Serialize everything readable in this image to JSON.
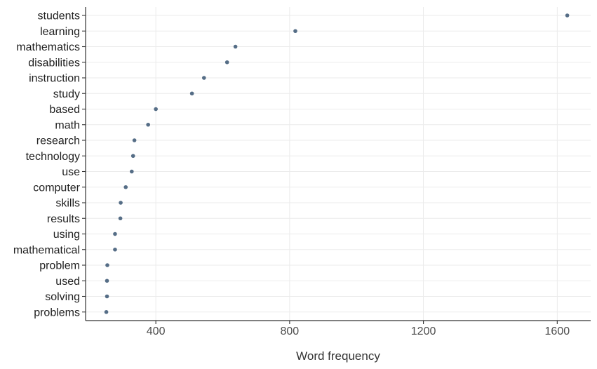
{
  "chart_data": {
    "type": "scatter",
    "title": "",
    "xlabel": "Word frequency",
    "ylabel": "",
    "xlim": [
      190,
      1700
    ],
    "x_ticks": [
      400,
      800,
      1200,
      1600
    ],
    "grid": true,
    "legend": "none",
    "point_color": "#556d86",
    "categories": [
      "students",
      "learning",
      "mathematics",
      "disabilities",
      "instruction",
      "study",
      "based",
      "math",
      "research",
      "technology",
      "use",
      "computer",
      "skills",
      "results",
      "using",
      "mathematical",
      "problem",
      "used",
      "solving",
      "problems"
    ],
    "values": [
      1630,
      817,
      638,
      613,
      544,
      508,
      400,
      377,
      336,
      332,
      328,
      310,
      295,
      294,
      278,
      278,
      255,
      254,
      254,
      252
    ]
  }
}
